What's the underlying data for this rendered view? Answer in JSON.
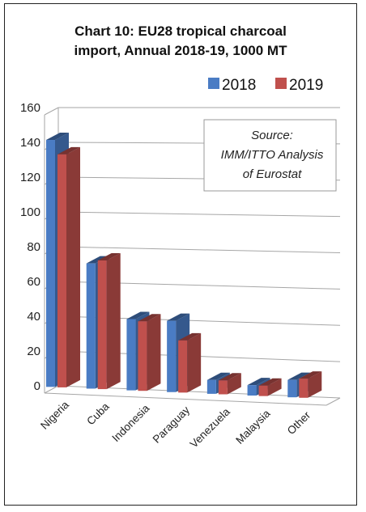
{
  "chart_data": {
    "type": "bar",
    "title_lines": [
      "Chart 10: EU28 tropical charcoal",
      "import, Annual 2018-19, 1000 MT"
    ],
    "categories": [
      "Nigeria",
      "Cuba",
      "Indonesia",
      "Paraguay",
      "Venezuela",
      "Malaysia",
      "Other"
    ],
    "series": [
      {
        "name": "2018",
        "values": [
          142,
          72,
          41,
          41,
          8,
          6,
          10
        ],
        "color": "#4a7cc4"
      },
      {
        "name": "2019",
        "values": [
          134,
          74,
          40,
          30,
          8,
          6,
          11
        ],
        "color": "#c0504d"
      }
    ],
    "y_ticks": [
      "0",
      "20",
      "40",
      "60",
      "80",
      "100",
      "120",
      "140",
      "160"
    ],
    "ylim": [
      0,
      160
    ],
    "grid": true,
    "legend_placement": "top-right",
    "source_lines": [
      "Source:",
      "IMM/ITTO Analysis",
      "of Eurostat"
    ]
  }
}
